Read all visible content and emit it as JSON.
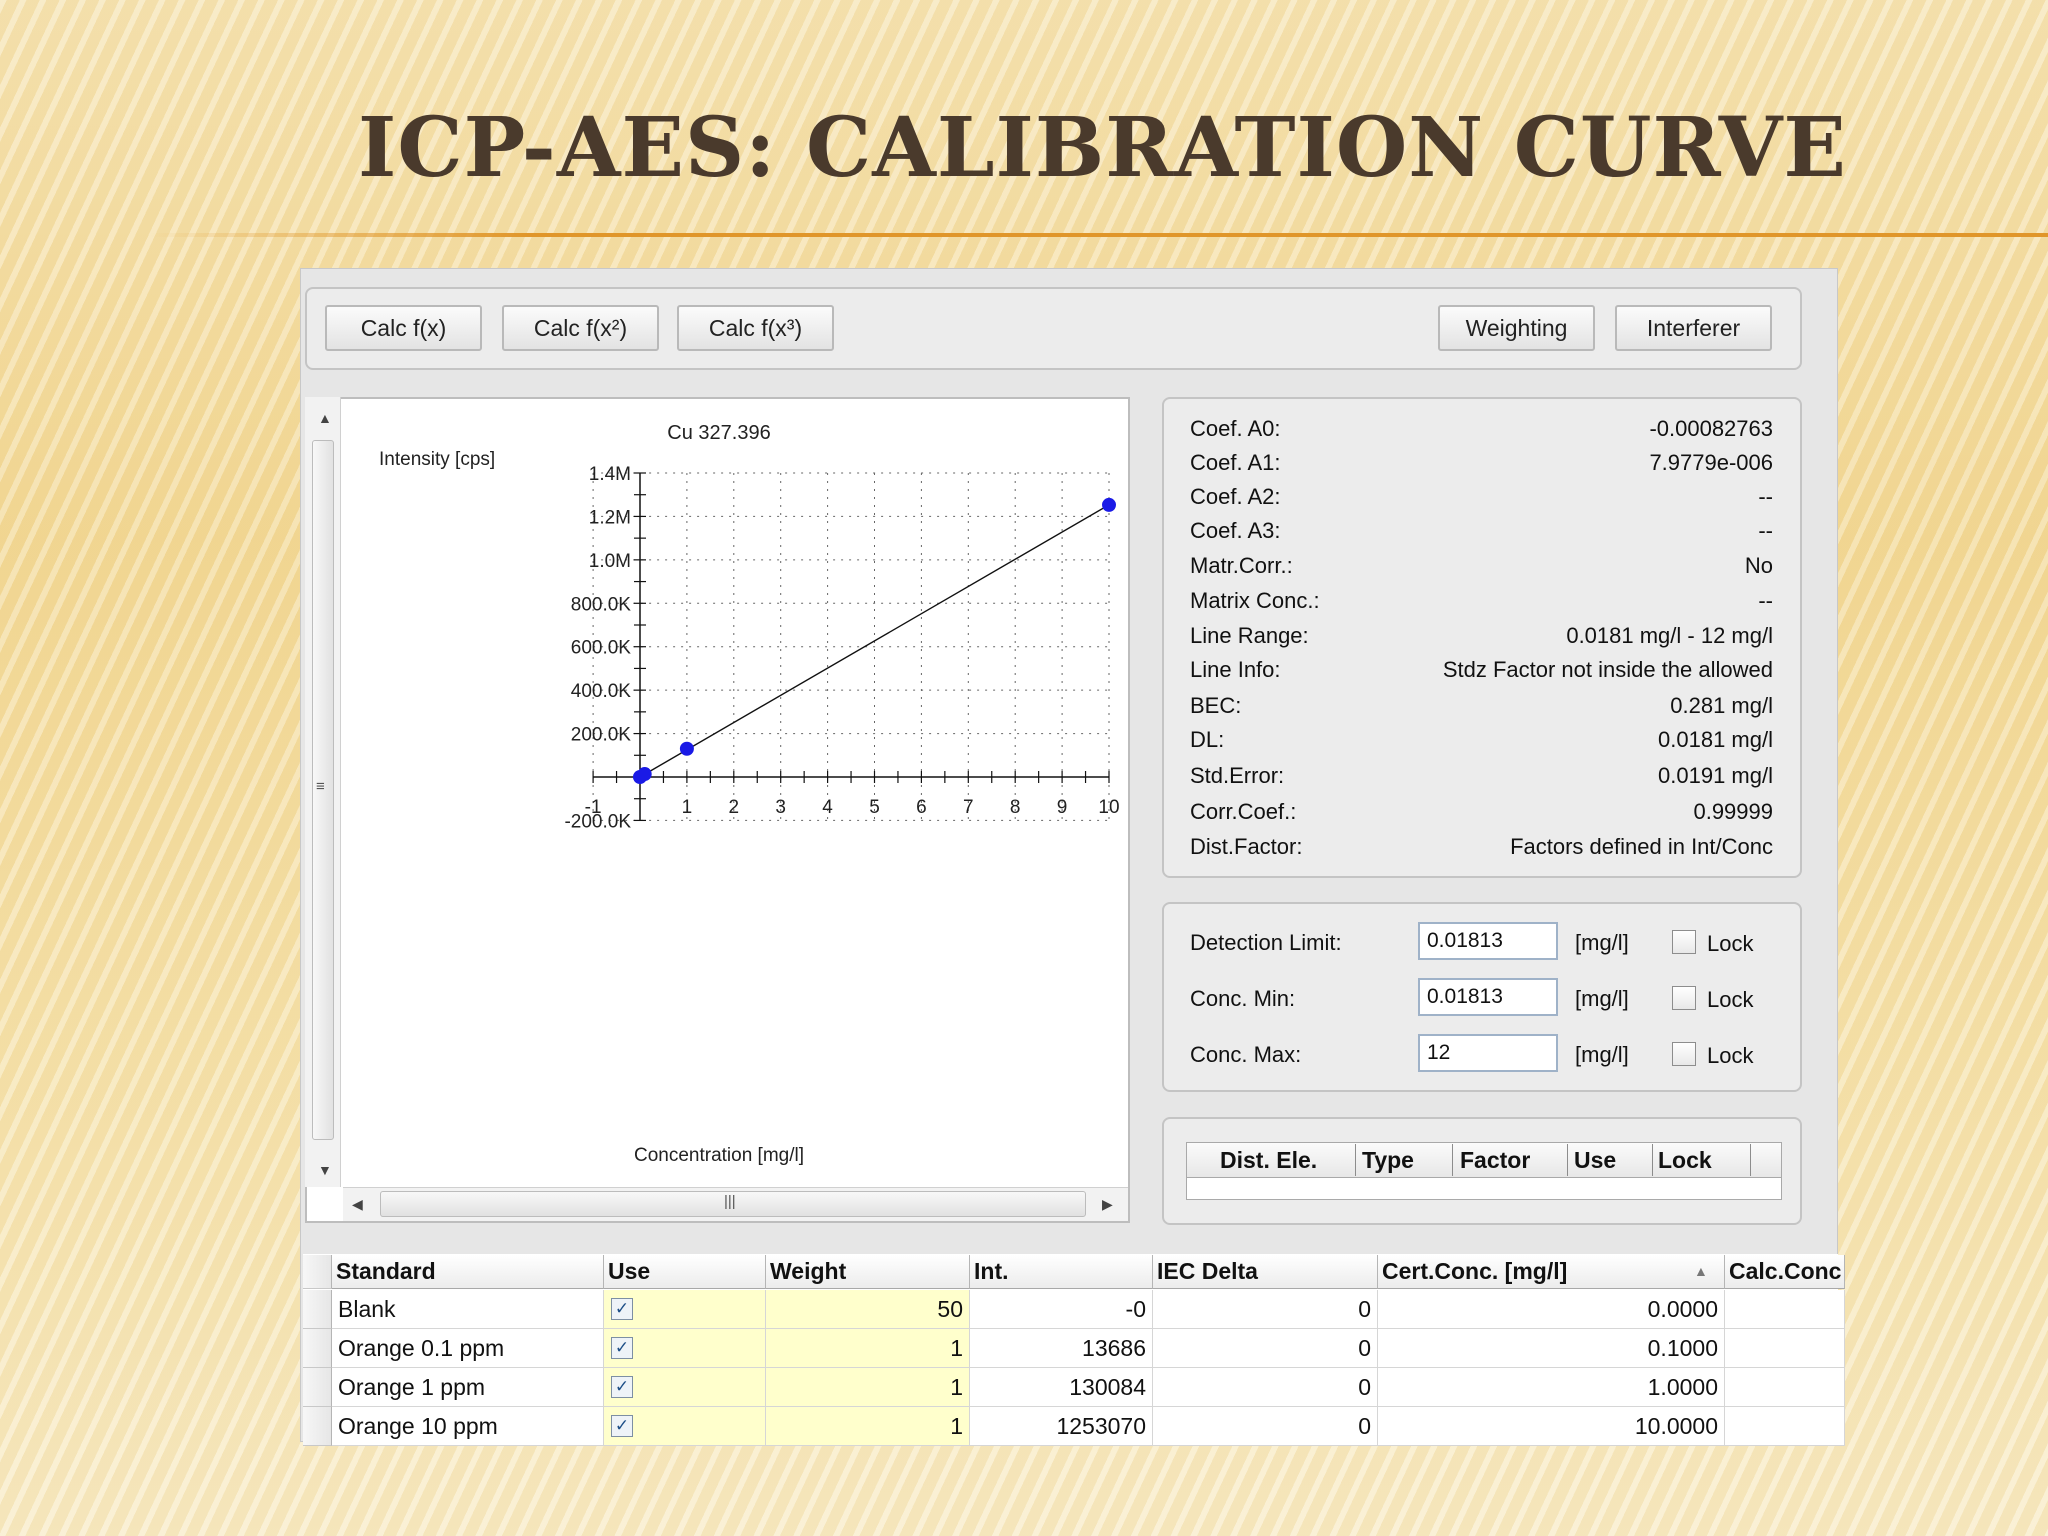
{
  "slide": {
    "title": "ICP-AES: CALIBRATION CURVE"
  },
  "toolbar": {
    "calc_fx": "Calc  f(x)",
    "calc_fx2": "Calc  f(x²)",
    "calc_fx3": "Calc  f(x³)",
    "weighting": "Weighting",
    "interferer": "Interferer"
  },
  "chart_data": {
    "type": "scatter",
    "title": "Cu 327.396",
    "xlabel": "Concentration [mg/l]",
    "ylabel": "Intensity [cps]",
    "xlim": [
      -1,
      10
    ],
    "ylim": [
      -200000,
      1400000
    ],
    "x_ticks": [
      "-1",
      "1",
      "2",
      "3",
      "4",
      "5",
      "6",
      "7",
      "8",
      "9",
      "10"
    ],
    "y_ticks": [
      "1.4M",
      "1.2M",
      "1.0M",
      "800.0K",
      "600.0K",
      "400.0K",
      "200.0K",
      "-200.0K"
    ],
    "grid": true,
    "series": [
      {
        "x": [
          0,
          0.1,
          1,
          10
        ],
        "y": [
          0,
          13686,
          130084,
          1253070
        ],
        "color": "#1a1ae6"
      }
    ],
    "fit_line": {
      "x": [
        0,
        10
      ],
      "y": [
        0,
        1253400
      ],
      "color": "#111111"
    }
  },
  "coefficients": [
    {
      "label": "Coef. A0:",
      "value": "-0.00082763"
    },
    {
      "label": "Coef. A1:",
      "value": "7.9779e-006"
    },
    {
      "label": "Coef. A2:",
      "value": "--"
    },
    {
      "label": "Coef. A3:",
      "value": "--"
    },
    {
      "label": "Matr.Corr.:",
      "value": "No"
    },
    {
      "label": "Matrix Conc.:",
      "value": "--"
    },
    {
      "label": "Line Range:",
      "value": "0.0181 mg/l - 12 mg/l"
    },
    {
      "label": "Line Info:",
      "value": "Stdz Factor not inside the allowed"
    },
    {
      "label": "BEC:",
      "value": "0.281 mg/l"
    },
    {
      "label": "DL:",
      "value": "0.0181 mg/l"
    },
    {
      "label": "Std.Error:",
      "value": "0.0191 mg/l"
    },
    {
      "label": "Corr.Coef.:",
      "value": "0.99999"
    },
    {
      "label": "Dist.Factor:",
      "value": "Factors defined in Int/Conc"
    }
  ],
  "limits": [
    {
      "label": "Detection Limit:",
      "value": "0.01813",
      "unit": "[mg/l]",
      "lock": "Lock"
    },
    {
      "label": "Conc. Min:",
      "value": "0.01813",
      "unit": "[mg/l]",
      "lock": "Lock"
    },
    {
      "label": "Conc. Max:",
      "value": "12",
      "unit": "[mg/l]",
      "lock": "Lock"
    }
  ],
  "dist_table": {
    "columns": [
      "Dist. Ele.",
      "Type",
      "Factor",
      "Use",
      "Lock"
    ]
  },
  "standards_table": {
    "columns": [
      "Standard",
      "Use",
      "Weight",
      "Int.",
      "IEC Delta",
      "Cert.Conc. [mg/l]",
      "Calc.Conc"
    ],
    "rows": [
      {
        "standard": "Blank",
        "weight": "50",
        "int": "-0",
        "iec": "0",
        "cert": "0.0000"
      },
      {
        "standard": "Orange 0.1 ppm",
        "weight": "1",
        "int": "13686",
        "iec": "0",
        "cert": "0.1000"
      },
      {
        "standard": "Orange 1 ppm",
        "weight": "1",
        "int": "130084",
        "iec": "0",
        "cert": "1.0000"
      },
      {
        "standard": "Orange 10 ppm",
        "weight": "1",
        "int": "1253070",
        "iec": "0",
        "cert": "10.0000"
      }
    ]
  }
}
